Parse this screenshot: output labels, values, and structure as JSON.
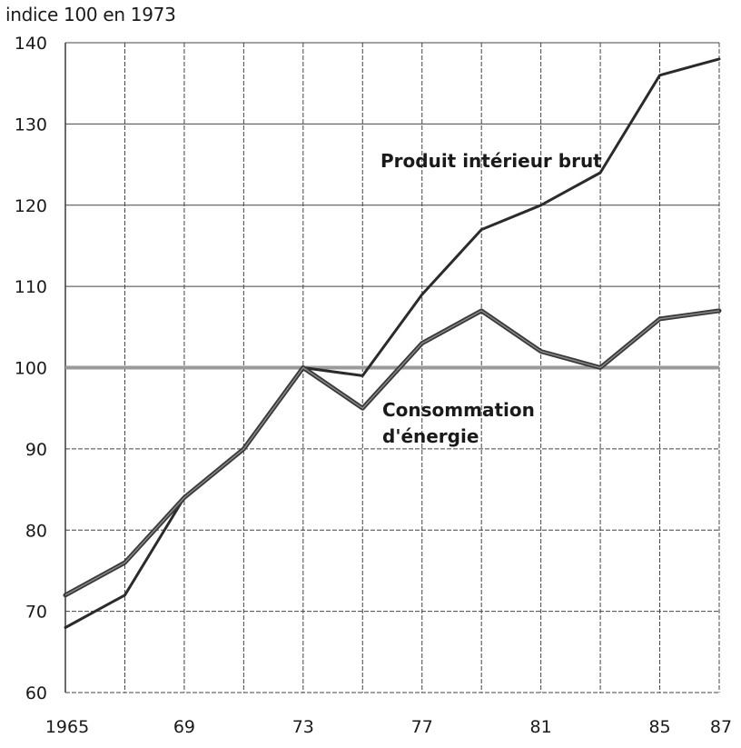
{
  "chart_data": {
    "type": "line",
    "title": "",
    "ylabel": "indice 100 en 1973",
    "xlabel": "",
    "xlim": [
      1965,
      1987
    ],
    "ylim": [
      60,
      140
    ],
    "grid": true,
    "reference_line": 100,
    "x_ticks": [
      1965,
      1969,
      1973,
      1977,
      1981,
      1985,
      1987
    ],
    "x_tick_labels": [
      "1965",
      "69",
      "73",
      "77",
      "81",
      "85",
      "87"
    ],
    "y_ticks": [
      60,
      70,
      80,
      90,
      100,
      110,
      120,
      130,
      140
    ],
    "y_tick_labels": [
      "60",
      "70",
      "80",
      "90",
      "100",
      "110",
      "120",
      "130",
      "140"
    ],
    "series": [
      {
        "name": "Produit intérieur brut",
        "x": [
          1965,
          1967,
          1969,
          1971,
          1973,
          1975,
          1977,
          1979,
          1981,
          1983,
          1985,
          1987
        ],
        "values": [
          68,
          72,
          84,
          90,
          100,
          99,
          109,
          117,
          120,
          124,
          136,
          138
        ]
      },
      {
        "name": "Consommation d'énergie",
        "name_lines": [
          "Consommation",
          "d'énergie"
        ],
        "x": [
          1965,
          1967,
          1969,
          1971,
          1973,
          1975,
          1977,
          1979,
          1981,
          1983,
          1985,
          1987
        ],
        "values": [
          72,
          76,
          84,
          90,
          100,
          95,
          103,
          107,
          102,
          100,
          106,
          107
        ]
      }
    ],
    "colors": {
      "line": "#2b2b2b",
      "energy_line": "#3a3a3a",
      "grid": "#444444",
      "reference": "#9a9a9a"
    }
  }
}
